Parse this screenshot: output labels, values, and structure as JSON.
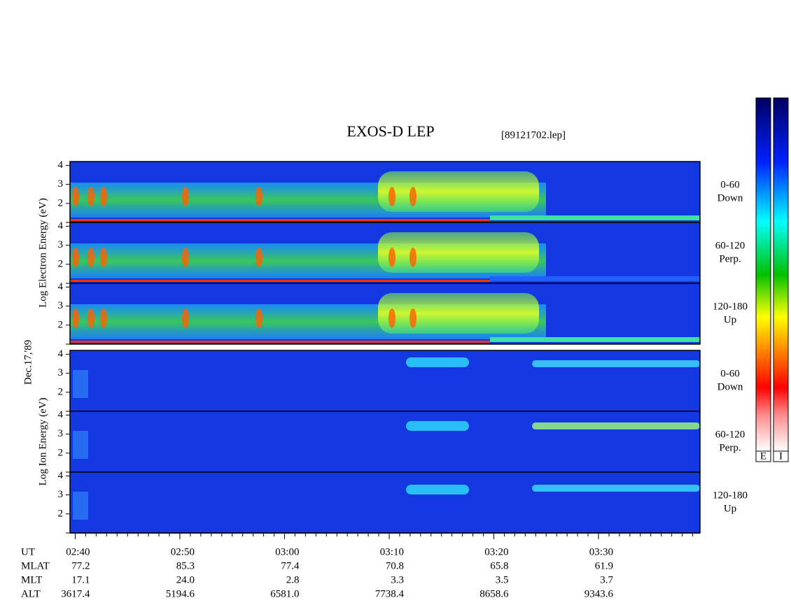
{
  "header": {
    "title": "EXOS-D LEP",
    "file": "[89121702.lep]",
    "date": "Dec.17,'89"
  },
  "panels": {
    "ylim": [
      1,
      4.2
    ],
    "yticks": [
      2,
      3,
      4
    ]
  },
  "groups": [
    {
      "label": "Log Electron Energy (eV)",
      "panels": [
        {
          "label": "0-60",
          "sublabel": "Down"
        },
        {
          "label": "60-120",
          "sublabel": "Perp."
        },
        {
          "label": "120-180",
          "sublabel": "Up"
        }
      ]
    },
    {
      "label": "Log Ion Energy (eV)",
      "panels": [
        {
          "label": "0-60",
          "sublabel": "Down"
        },
        {
          "label": "60-120",
          "sublabel": "Perp."
        },
        {
          "label": "120-180",
          "sublabel": "Up"
        }
      ]
    }
  ],
  "colorbars": [
    "E",
    "I"
  ],
  "time_axis": {
    "xlim": [
      159.5,
      219.7
    ],
    "xticks": [
      {
        "value": 160,
        "label": "02:40"
      },
      {
        "value": 170,
        "label": "02:50"
      },
      {
        "value": 180,
        "label": "03:00"
      },
      {
        "value": 190,
        "label": "03:10"
      },
      {
        "value": 200,
        "label": "03:20"
      },
      {
        "value": 210,
        "label": "03:30"
      }
    ]
  },
  "ephemeris": {
    "labels": [
      "UT",
      "MLAT",
      "MLT",
      "ALT"
    ],
    "rows": [
      [
        "77.2",
        "85.3",
        "77.4",
        "70.8",
        "65.8",
        "61.9"
      ],
      [
        "17.1",
        "24.0",
        "2.8",
        "3.3",
        "3.5",
        "3.7"
      ],
      [
        "3617.4",
        "5194.6",
        "6581.0",
        "7738.4",
        "8658.6",
        "9343.6"
      ]
    ]
  }
}
